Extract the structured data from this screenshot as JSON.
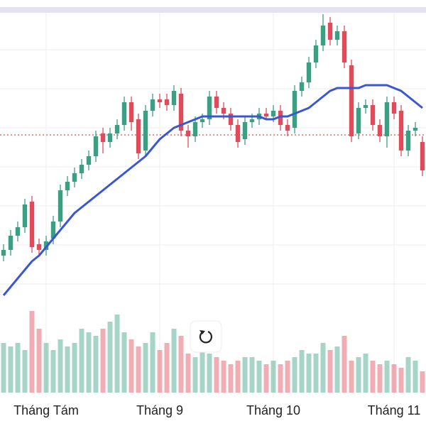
{
  "chart_data": {
    "type": "candlestick",
    "up_color": "#3a9f83",
    "down_color": "#e04a59",
    "open": [
      20,
      22,
      27,
      30,
      39,
      24,
      22,
      26,
      32,
      43,
      46,
      49,
      52,
      55,
      63,
      60,
      63,
      66,
      74,
      68,
      57,
      71,
      75,
      75,
      73,
      77,
      64,
      62,
      67,
      68,
      76,
      72,
      70,
      66,
      61,
      67,
      68,
      70,
      69,
      71,
      66,
      65,
      78,
      81,
      88,
      94,
      102,
      96,
      99,
      87,
      63,
      72,
      73,
      66,
      62,
      74,
      71,
      57,
      64,
      60
    ],
    "high": [
      24,
      29,
      32,
      40,
      41,
      26,
      27,
      34,
      45,
      48,
      51,
      54,
      57,
      64,
      65,
      65,
      68,
      76,
      76,
      70,
      73,
      77,
      77,
      77,
      80,
      79,
      66,
      69,
      70,
      78,
      78,
      74,
      72,
      68,
      69,
      70,
      72,
      72,
      73,
      73,
      68,
      80,
      83,
      90,
      96,
      105,
      104,
      101,
      101,
      89,
      74,
      75,
      75,
      68,
      76,
      76,
      73,
      66,
      67,
      62
    ],
    "low": [
      18,
      20,
      25,
      28,
      21,
      20,
      20,
      24,
      30,
      41,
      44,
      47,
      50,
      53,
      56,
      58,
      61,
      64,
      64,
      54,
      55,
      69,
      72,
      71,
      71,
      62,
      58,
      60,
      65,
      66,
      70,
      68,
      64,
      58,
      59,
      65,
      66,
      68,
      67,
      64,
      62,
      63,
      76,
      79,
      86,
      92,
      94,
      94,
      86,
      60,
      61,
      70,
      64,
      60,
      58,
      68,
      55,
      55,
      62,
      48
    ],
    "close": [
      22,
      27,
      30,
      38,
      23,
      22,
      25,
      32,
      43,
      46,
      49,
      52,
      55,
      62,
      60,
      63,
      66,
      74,
      67,
      56,
      71,
      75,
      74,
      73,
      78,
      64,
      62,
      67,
      68,
      76,
      72,
      70,
      66,
      60,
      67,
      68,
      70,
      69,
      71,
      66,
      64,
      78,
      81,
      88,
      94,
      101,
      96,
      99,
      88,
      62,
      72,
      73,
      66,
      62,
      74,
      70,
      57,
      64,
      65,
      50
    ],
    "ylim": [
      0,
      110
    ],
    "volume": {
      "values": [
        70,
        65,
        70,
        60,
        115,
        90,
        70,
        60,
        75,
        65,
        70,
        90,
        85,
        80,
        90,
        100,
        110,
        85,
        75,
        65,
        70,
        85,
        60,
        70,
        90,
        80,
        55,
        50,
        60,
        55,
        50,
        45,
        40,
        45,
        50,
        50,
        45,
        40,
        45,
        40,
        45,
        50,
        60,
        55,
        55,
        70,
        60,
        65,
        80,
        45,
        50,
        55,
        45,
        40,
        45,
        40,
        35,
        50,
        45,
        30
      ],
      "lim": [
        0,
        140
      ]
    },
    "ma": {
      "color": "#3a56d4",
      "values": [
        6,
        9,
        12,
        15,
        18,
        20,
        23,
        26,
        29,
        32,
        35,
        37,
        39,
        41,
        43,
        45,
        47,
        49,
        51,
        53,
        55,
        58,
        61,
        63,
        65,
        66,
        67,
        68,
        69,
        69,
        69,
        69,
        69,
        69,
        69,
        69,
        69,
        68,
        68,
        69,
        69,
        70,
        71,
        72,
        74,
        76,
        78,
        79,
        79,
        79,
        79,
        80,
        80,
        80,
        80,
        79,
        78,
        76,
        74,
        72
      ]
    },
    "reference_line": {
      "value": 62.5,
      "color": "#d9534f"
    },
    "grid": [
      92.5,
      78.75,
      65,
      51.25,
      37.5,
      23.75,
      10
    ],
    "x_labels": [
      {
        "label": "Tháng Tám",
        "index": 6
      },
      {
        "label": "Tháng 9",
        "index": 22
      },
      {
        "label": "Tháng 10",
        "index": 38
      },
      {
        "label": "Tháng 11",
        "index": 55
      }
    ]
  }
}
